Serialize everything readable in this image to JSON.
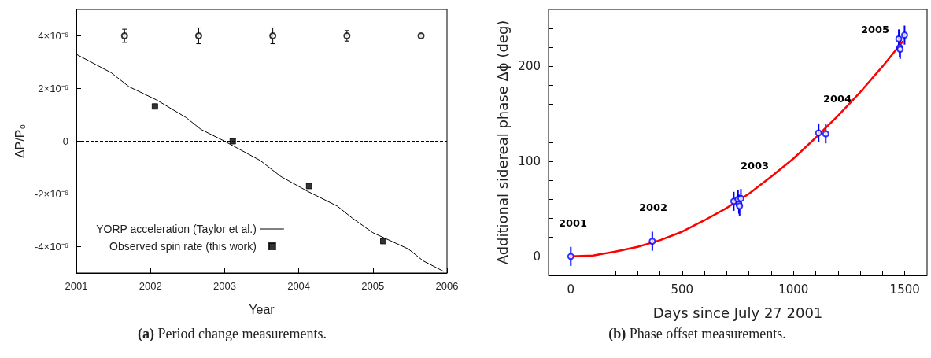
{
  "chart_data": [
    {
      "type": "scatter",
      "xlabel": "Year",
      "ylabel": "ΔP/P₀",
      "xlim": [
        2001,
        2006
      ],
      "ylim": [
        -5e-06,
        5e-06
      ],
      "xticks": [
        2001,
        2002,
        2003,
        2004,
        2005,
        2006
      ],
      "yticks": [
        {
          "value": -4e-06,
          "label": "-4×10⁻⁶"
        },
        {
          "value": -2e-06,
          "label": "-2×10⁻⁶"
        },
        0,
        {
          "value": 2e-06,
          "label": "2×10⁻⁶"
        },
        {
          "value": 4e-06,
          "label": "4×10⁻⁶"
        }
      ],
      "legend": "bottom left",
      "ref_lines": [
        {
          "axis": "y",
          "value": 0,
          "color": "#000000",
          "line_style": "dashed"
        }
      ],
      "annotations": [
        "(a) Period change measurements."
      ],
      "series": [
        {
          "type": "line",
          "name": "YORP acceleration (Taylor et al.)",
          "color": "#000000",
          "marker": "none",
          "x": [
            2001,
            2001.47,
            2001.71,
            2002.08,
            2002.48,
            2002.68,
            2003.0,
            2003.48,
            2003.76,
            2004.12,
            2004.52,
            2004.72,
            2005.0,
            2005.48,
            2005.68,
            2005.95
          ],
          "values": [
            3.3e-06,
            2.6e-06,
            2.07e-06,
            1.57e-06,
            9e-07,
            4.5e-07,
            0,
            -7.3e-07,
            -1.34e-06,
            -1.9e-06,
            -2.46e-06,
            -2.91e-06,
            -3.47e-06,
            -4.09e-06,
            -4.54e-06,
            -4.93e-06
          ]
        },
        {
          "name": "Observed spin rate (this work)",
          "color": "#000000",
          "marker": "square",
          "x": [
            2002.06,
            2003.11,
            2004.14,
            2005.14
          ],
          "values": [
            1.32e-06,
            0,
            -1.7e-06,
            -3.79e-06
          ]
        },
        {
          "color": "#000000",
          "marker": "circle",
          "x": [
            2001.65,
            2002.65,
            2003.65,
            2004.65,
            2005.65
          ],
          "values": [
            4e-06,
            4e-06,
            4e-06,
            4e-06,
            4e-06
          ],
          "errors": [
            2.5e-07,
            3e-07,
            3e-07,
            2e-07,
            5e-08
          ]
        }
      ]
    },
    {
      "type": "scatter",
      "xlabel": "Days since July 27 2001",
      "ylabel": "Additional sidereal phase Δϕ (deg)",
      "xlim": [
        -100,
        1600
      ],
      "ylim": [
        -20,
        260
      ],
      "xticks": [
        {
          "value": -100,
          "label": null
        },
        0,
        {
          "value": 100,
          "label": null
        },
        {
          "value": 200,
          "label": null
        },
        {
          "value": 300,
          "label": null
        },
        {
          "value": 400,
          "label": null
        },
        500,
        {
          "value": 600,
          "label": null
        },
        {
          "value": 700,
          "label": null
        },
        {
          "value": 800,
          "label": null
        },
        {
          "value": 900,
          "label": null
        },
        1000,
        {
          "value": 1100,
          "label": null
        },
        {
          "value": 1200,
          "label": null
        },
        {
          "value": 1300,
          "label": null
        },
        {
          "value": 1400,
          "label": null
        },
        1500
      ],
      "yticks": [
        {
          "value": -20,
          "label": null
        },
        0,
        {
          "value": 20,
          "label": null
        },
        {
          "value": 40,
          "label": null
        },
        {
          "value": 60,
          "label": null
        },
        {
          "value": 80,
          "label": null
        },
        100,
        {
          "value": 120,
          "label": null
        },
        {
          "value": 140,
          "label": null
        },
        {
          "value": 160,
          "label": null
        },
        {
          "value": 180,
          "label": null
        },
        200,
        {
          "value": 220,
          "label": null
        },
        {
          "value": 240,
          "label": null
        }
      ],
      "annotations": [
        "2001",
        "2002",
        "2003",
        "2004",
        "2005",
        "(b) Phase offset measurements."
      ],
      "series": [
        {
          "type": "line",
          "color": "#ff0000",
          "marker": "none",
          "x": [
            0,
            100,
            200,
            300,
            400,
            500,
            600,
            700,
            800,
            900,
            1000,
            1100,
            1200,
            1300,
            1400,
            1490
          ],
          "values": [
            0,
            1,
            5,
            10,
            17,
            26,
            38,
            51,
            66,
            84,
            103,
            125,
            148,
            173,
            200,
            226
          ]
        },
        {
          "color": "#0000ff",
          "marker": "circle",
          "x": [
            0,
            366,
            732,
            751,
            755,
            758,
            764,
            1113,
            1145,
            1473,
            1477,
            1479,
            1499
          ],
          "values": [
            0,
            16,
            58,
            60,
            55,
            53,
            61,
            130,
            129,
            229,
            220,
            218,
            233
          ],
          "errors": [
            10,
            10,
            10,
            10,
            10,
            10,
            10,
            10,
            10,
            10,
            10,
            10,
            10
          ]
        }
      ]
    }
  ]
}
